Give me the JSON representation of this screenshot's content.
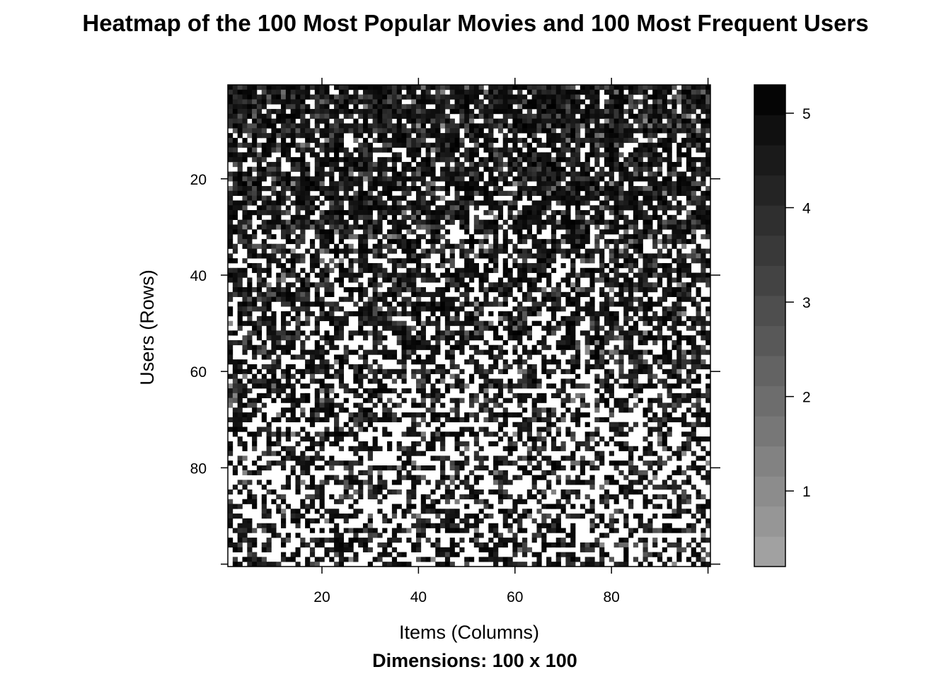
{
  "chart_data": {
    "type": "heatmap",
    "title": "Heatmap of the 100 Most Popular Movies and 100 Most Frequent Users",
    "xlabel": "Items (Columns)",
    "ylabel": "Users (Rows)",
    "subtitle": "Dimensions: 100 x 100",
    "n_rows": 100,
    "n_cols": 100,
    "x_ticks": [
      20,
      40,
      60,
      80
    ],
    "y_ticks": [
      20,
      40,
      60,
      80
    ],
    "colorbar_ticks": [
      1,
      2,
      3,
      4,
      5
    ],
    "value_range": [
      0.2,
      5.3
    ],
    "missing_color": "#ffffff",
    "color_low": "#a6a6a6",
    "color_high": "#000000",
    "missing_fraction_by_row_band": [
      {
        "rows": [
          1,
          10
        ],
        "missing_fraction": 0.12
      },
      {
        "rows": [
          11,
          30
        ],
        "missing_fraction": 0.22
      },
      {
        "rows": [
          31,
          50
        ],
        "missing_fraction": 0.32
      },
      {
        "rows": [
          51,
          70
        ],
        "missing_fraction": 0.42
      },
      {
        "rows": [
          71,
          100
        ],
        "missing_fraction": 0.52
      }
    ],
    "values_note": "ratings per cell are not individually legible; cells rendered with a reproducible pattern matching density"
  }
}
